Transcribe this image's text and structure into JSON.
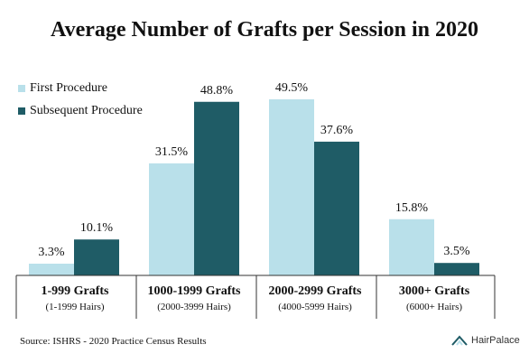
{
  "colors": {
    "first": "#b9e0ea",
    "subsequent": "#1f5c66",
    "axis": "#333333"
  },
  "legend": {
    "first": "First Procedure",
    "subsequent": "Subsequent Procedure"
  },
  "source": "Source: ISHRS - 2020 Practice Census Results",
  "brand": {
    "name": "HairPalace",
    "icon": "hairpalace-logo-icon"
  },
  "chart_data": {
    "type": "bar",
    "title": "Average Number of Grafts per Session in 2020",
    "xlabel": "",
    "ylabel": "",
    "ylim": [
      0,
      52
    ],
    "grid": false,
    "legend_position": "top-left",
    "categories": [
      "1-999 Grafts",
      "1000-1999 Grafts",
      "2000-2999 Grafts",
      "3000+ Grafts"
    ],
    "category_sublabels": [
      "(1-1999 Hairs)",
      "(2000-3999 Hairs)",
      "(4000-5999 Hairs)",
      "(6000+ Hairs)"
    ],
    "series": [
      {
        "name": "First Procedure",
        "values": [
          3.3,
          31.5,
          49.5,
          15.8
        ],
        "labels": [
          "3.3%",
          "31.5%",
          "49.5%",
          "15.8%"
        ]
      },
      {
        "name": "Subsequent Procedure",
        "values": [
          10.1,
          48.8,
          37.6,
          3.5
        ],
        "labels": [
          "10.1%",
          "48.8%",
          "37.6%",
          "3.5%"
        ]
      }
    ]
  }
}
